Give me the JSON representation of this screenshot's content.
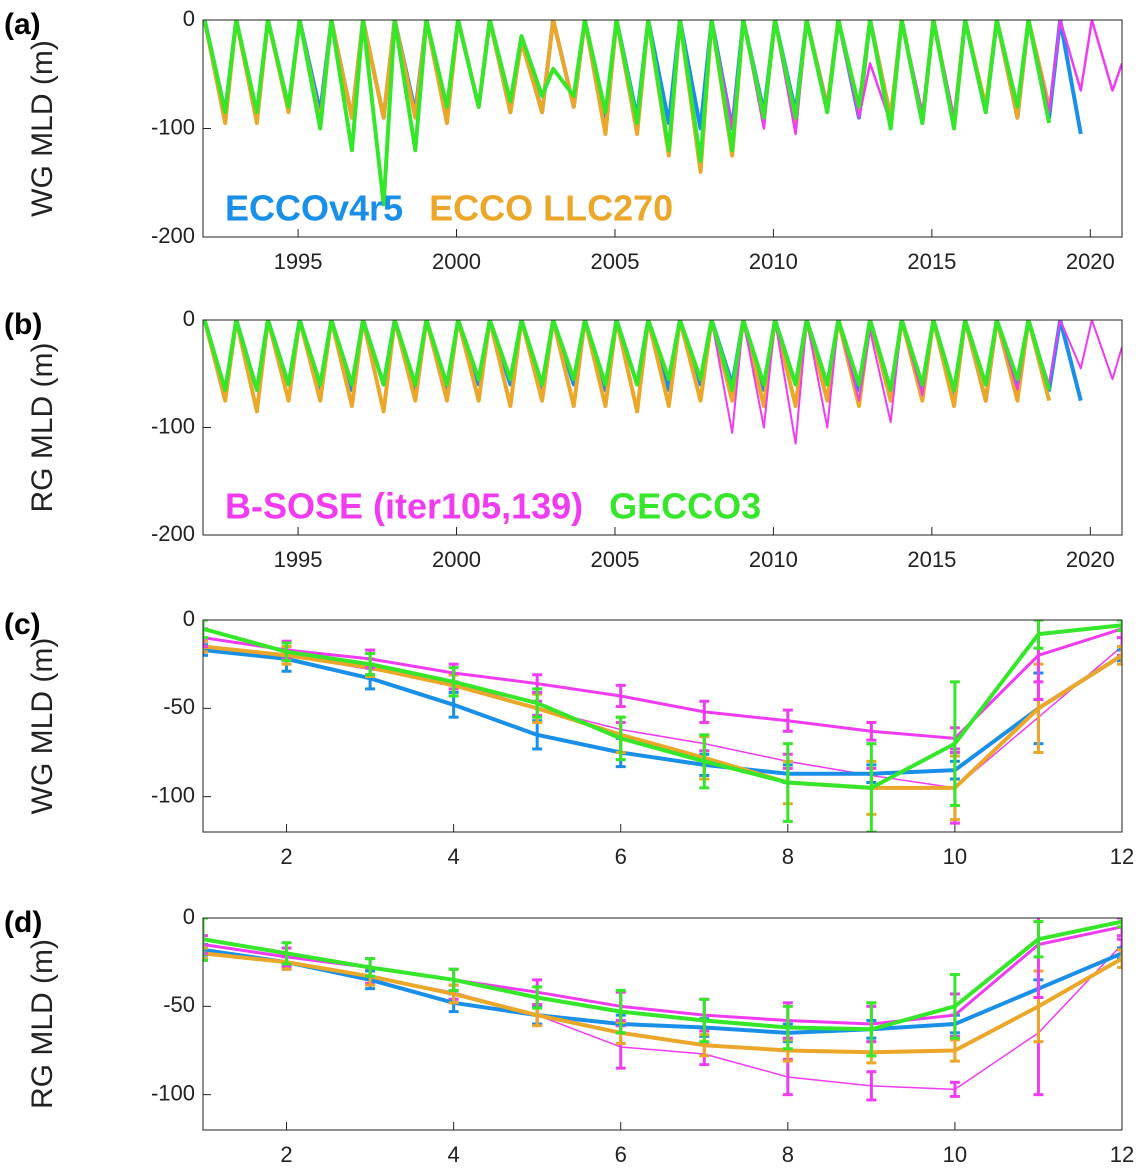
{
  "chart_data": [
    {
      "type": "line",
      "panel_label": "(a)",
      "ylabel": "WG MLD (m)",
      "x": [
        1992.05,
        1992.7,
        1993.05,
        1993.7,
        1994.05,
        1994.7,
        1995.05,
        1995.7,
        1996.05,
        1996.7,
        1997.05,
        1997.7,
        1998.05,
        1998.7,
        1999.05,
        1999.7,
        2000.05,
        2000.7,
        2001.05,
        2001.7,
        2002.05,
        2002.7,
        2003.05,
        2003.7,
        2004.05,
        2004.7,
        2005.05,
        2005.7,
        2006.05,
        2006.7,
        2007.05,
        2007.7,
        2008.05,
        2008.7,
        2009.05,
        2009.7,
        2010.05,
        2010.7,
        2011.05,
        2011.7,
        2012.05,
        2012.7,
        2013.05,
        2013.7,
        2014.05,
        2014.7,
        2015.05,
        2015.7,
        2016.05,
        2016.7,
        2017.05,
        2017.7,
        2018.05,
        2018.7,
        2019.05,
        2019.7,
        2020.05,
        2020.7,
        2021.0
      ],
      "xlim": [
        1992,
        2021
      ],
      "xticks": [
        1995,
        2000,
        2005,
        2010,
        2015,
        2020
      ],
      "ylim": [
        -200,
        0
      ],
      "yticks": [
        -200,
        -100,
        0
      ],
      "series": [
        {
          "name": "ECCOv4r5",
          "color": "#1a8fe8",
          "line_width": 4,
          "values": [
            0,
            -85,
            0,
            -90,
            0,
            -80,
            0,
            -85,
            0,
            -90,
            0,
            -90,
            0,
            -85,
            0,
            -85,
            0,
            -80,
            0,
            -85,
            -15,
            -85,
            0,
            -80,
            0,
            -95,
            0,
            -90,
            0,
            -95,
            0,
            -100,
            0,
            -100,
            0,
            -85,
            0,
            -85,
            0,
            -80,
            0,
            -90,
            0,
            -90,
            0,
            -95,
            0,
            -95,
            0,
            -85,
            0,
            -90,
            0,
            -90,
            0,
            -105,
            null,
            null,
            null
          ]
        },
        {
          "name": "ECCO LLC270",
          "color": "#eaa72a",
          "line_width": 4,
          "values": [
            0,
            -95,
            0,
            -95,
            0,
            -85,
            0,
            -95,
            0,
            -90,
            0,
            -90,
            0,
            -90,
            0,
            -95,
            0,
            -80,
            0,
            -85,
            -20,
            -85,
            0,
            -80,
            0,
            -105,
            0,
            -105,
            0,
            -125,
            0,
            -140,
            0,
            -125,
            0,
            -90,
            0,
            -95,
            0,
            -80,
            0,
            -85,
            0,
            -90,
            0,
            -95,
            0,
            -95,
            0,
            -80,
            0,
            -90,
            0,
            -80,
            null,
            null,
            null,
            null,
            null
          ]
        },
        {
          "color": "#f03cf0",
          "line_width": 2.5,
          "values": [
            null,
            null,
            null,
            null,
            null,
            null,
            null,
            null,
            null,
            null,
            null,
            null,
            null,
            null,
            null,
            null,
            null,
            null,
            null,
            null,
            null,
            null,
            null,
            null,
            null,
            null,
            null,
            null,
            null,
            null,
            null,
            null,
            0,
            -100,
            0,
            -100,
            0,
            -105,
            0,
            -80,
            0,
            -90,
            -40,
            -95,
            0,
            -85,
            0,
            -90,
            0,
            -85,
            0,
            -80,
            0,
            -85,
            0,
            -65,
            0,
            -65,
            -40
          ]
        },
        {
          "color": "#36e62a",
          "line_width": 4,
          "values": [
            0,
            -85,
            0,
            -85,
            0,
            -80,
            0,
            -100,
            0,
            -120,
            0,
            -170,
            0,
            -120,
            0,
            -80,
            0,
            -80,
            0,
            -75,
            -15,
            -70,
            -45,
            -70,
            0,
            -85,
            0,
            -95,
            0,
            -120,
            0,
            -130,
            0,
            -120,
            0,
            -90,
            0,
            -90,
            0,
            -85,
            0,
            -80,
            0,
            -100,
            0,
            -95,
            0,
            -100,
            0,
            -85,
            0,
            -80,
            0,
            -95,
            null,
            null,
            null,
            null,
            null
          ]
        }
      ]
    },
    {
      "type": "line",
      "panel_label": "(b)",
      "ylabel": "RG MLD (m)",
      "x": [
        1992.05,
        1992.7,
        1993.05,
        1993.7,
        1994.05,
        1994.7,
        1995.05,
        1995.7,
        1996.05,
        1996.7,
        1997.05,
        1997.7,
        1998.05,
        1998.7,
        1999.05,
        1999.7,
        2000.05,
        2000.7,
        2001.05,
        2001.7,
        2002.05,
        2002.7,
        2003.05,
        2003.7,
        2004.05,
        2004.7,
        2005.05,
        2005.7,
        2006.05,
        2006.7,
        2007.05,
        2007.7,
        2008.05,
        2008.7,
        2009.05,
        2009.7,
        2010.05,
        2010.7,
        2011.05,
        2011.7,
        2012.05,
        2012.7,
        2013.05,
        2013.7,
        2014.05,
        2014.7,
        2015.05,
        2015.7,
        2016.05,
        2016.7,
        2017.05,
        2017.7,
        2018.05,
        2018.7,
        2019.05,
        2019.7,
        2020.05,
        2020.7,
        2021.0
      ],
      "xlim": [
        1992,
        2021
      ],
      "xticks": [
        1995,
        2000,
        2005,
        2010,
        2015,
        2020
      ],
      "ylim": [
        -200,
        0
      ],
      "yticks": [
        -200,
        -100,
        0
      ],
      "series": [
        {
          "color": "#1a8fe8",
          "line_width": 4,
          "values": [
            0,
            -70,
            0,
            -65,
            0,
            -60,
            0,
            -65,
            0,
            -65,
            0,
            -60,
            0,
            -65,
            0,
            -65,
            0,
            -60,
            0,
            -60,
            0,
            -65,
            0,
            -60,
            0,
            -65,
            0,
            -60,
            0,
            -65,
            0,
            -60,
            0,
            -60,
            0,
            -65,
            0,
            -60,
            0,
            -60,
            0,
            -65,
            0,
            -70,
            0,
            -65,
            0,
            -70,
            0,
            -75,
            0,
            -65,
            0,
            -65,
            0,
            -75,
            null,
            null,
            null
          ]
        },
        {
          "color": "#eaa72a",
          "line_width": 4,
          "values": [
            0,
            -75,
            0,
            -85,
            0,
            -75,
            0,
            -75,
            0,
            -80,
            0,
            -85,
            0,
            -75,
            0,
            -75,
            0,
            -75,
            0,
            -80,
            0,
            -75,
            0,
            -80,
            0,
            -80,
            0,
            -85,
            0,
            -80,
            0,
            -75,
            0,
            -75,
            0,
            -80,
            0,
            -80,
            0,
            -75,
            0,
            -80,
            0,
            -75,
            0,
            -75,
            0,
            -80,
            0,
            -75,
            0,
            -75,
            0,
            -75,
            null,
            null,
            null,
            null,
            null
          ]
        },
        {
          "name": "B-SOSE (iter105,139)",
          "color": "#f03cf0",
          "line_width": 2,
          "values": [
            null,
            null,
            null,
            null,
            null,
            null,
            null,
            null,
            null,
            null,
            null,
            null,
            null,
            null,
            null,
            null,
            null,
            null,
            null,
            null,
            null,
            null,
            null,
            null,
            null,
            null,
            null,
            null,
            null,
            null,
            null,
            null,
            0,
            -105,
            0,
            -100,
            0,
            -115,
            0,
            -100,
            0,
            -75,
            -10,
            -95,
            0,
            -70,
            0,
            -65,
            0,
            -60,
            0,
            -65,
            0,
            -60,
            0,
            -45,
            0,
            -55,
            -25
          ]
        },
        {
          "name": "GECCO3",
          "color": "#36e62a",
          "line_width": 4,
          "values": [
            0,
            -65,
            0,
            -65,
            0,
            -60,
            0,
            -60,
            0,
            -60,
            0,
            -60,
            0,
            -60,
            0,
            -60,
            0,
            -55,
            0,
            -55,
            0,
            -60,
            0,
            -55,
            0,
            -60,
            0,
            -60,
            0,
            -55,
            0,
            -55,
            0,
            -65,
            0,
            -60,
            0,
            -60,
            0,
            -60,
            0,
            -60,
            0,
            -65,
            0,
            -60,
            0,
            -65,
            0,
            -60,
            0,
            -55,
            0,
            -65,
            null,
            null,
            null,
            null,
            null
          ]
        }
      ]
    },
    {
      "type": "errorbar",
      "panel_label": "(c)",
      "ylabel": "WG MLD (m)",
      "x": [
        1,
        2,
        3,
        4,
        5,
        6,
        7,
        8,
        9,
        10,
        11,
        12
      ],
      "xlim": [
        1,
        12
      ],
      "xticks": [
        2,
        4,
        6,
        8,
        10,
        12
      ],
      "ylim": [
        -120,
        0
      ],
      "yticks": [
        -100,
        -50,
        0
      ],
      "series": [
        {
          "color": "#f03cf0",
          "line_width": 1.5,
          "values": [
            -15,
            -20,
            -28,
            -35,
            -50,
            -62,
            -70,
            -80,
            -88,
            -95,
            -55,
            -15
          ],
          "errors": [
            3,
            3,
            3,
            4,
            4,
            4,
            4,
            4,
            4,
            20,
            20,
            5
          ]
        },
        {
          "color": "#1a8fe8",
          "line_width": 4,
          "values": [
            -17,
            -22,
            -33,
            -48,
            -65,
            -75,
            -82,
            -87,
            -87,
            -85,
            -50,
            -20
          ],
          "errors": [
            3,
            7,
            6,
            7,
            8,
            8,
            6,
            5,
            5,
            5,
            20,
            3
          ]
        },
        {
          "color": "#eaa72a",
          "line_width": 4,
          "values": [
            -15,
            -20,
            -27,
            -37,
            -50,
            -65,
            -78,
            -92,
            -95,
            -95,
            -50,
            -20
          ],
          "errors": [
            3,
            5,
            5,
            6,
            8,
            10,
            12,
            12,
            15,
            18,
            25,
            5
          ]
        },
        {
          "color": "#f03cf0",
          "line_width": 3,
          "values": [
            -10,
            -17,
            -22,
            -30,
            -36,
            -43,
            -52,
            -57,
            -63,
            -67,
            -20,
            -5
          ],
          "errors": [
            5,
            5,
            5,
            5,
            5,
            6,
            6,
            6,
            5,
            6,
            25,
            5
          ]
        },
        {
          "color": "#36e62a",
          "line_width": 4,
          "values": [
            -5,
            -18,
            -25,
            -35,
            -47,
            -67,
            -80,
            -92,
            -95,
            -70,
            -8,
            -3
          ],
          "errors": [
            5,
            5,
            6,
            8,
            8,
            12,
            15,
            22,
            25,
            35,
            8,
            3
          ]
        }
      ]
    },
    {
      "type": "errorbar",
      "panel_label": "(d)",
      "ylabel": "RG MLD (m)",
      "x": [
        1,
        2,
        3,
        4,
        5,
        6,
        7,
        8,
        9,
        10,
        11,
        12
      ],
      "xlim": [
        1,
        12
      ],
      "xticks": [
        2,
        4,
        6,
        8,
        10,
        12
      ],
      "ylim": [
        -120,
        0
      ],
      "yticks": [
        -100,
        -50,
        0
      ],
      "series": [
        {
          "color": "#f03cf0",
          "line_width": 1.5,
          "values": [
            -18,
            -25,
            -33,
            -42,
            -55,
            -73,
            -77,
            -90,
            -95,
            -97,
            -65,
            -15
          ],
          "errors": [
            3,
            3,
            4,
            4,
            5,
            12,
            6,
            10,
            8,
            4,
            35,
            3
          ]
        },
        {
          "color": "#1a8fe8",
          "line_width": 4,
          "values": [
            -18,
            -25,
            -35,
            -48,
            -55,
            -60,
            -62,
            -65,
            -63,
            -60,
            -40,
            -20
          ],
          "errors": [
            3,
            4,
            5,
            5,
            5,
            5,
            5,
            5,
            5,
            5,
            5,
            3
          ]
        },
        {
          "color": "#eaa72a",
          "line_width": 4,
          "values": [
            -20,
            -25,
            -33,
            -43,
            -55,
            -65,
            -72,
            -75,
            -76,
            -75,
            -50,
            -23
          ],
          "errors": [
            3,
            4,
            5,
            5,
            6,
            6,
            6,
            6,
            6,
            6,
            20,
            5
          ]
        },
        {
          "color": "#f03cf0",
          "line_width": 3,
          "values": [
            -15,
            -22,
            -28,
            -35,
            -42,
            -50,
            -55,
            -58,
            -60,
            -55,
            -15,
            -5
          ],
          "errors": [
            5,
            5,
            5,
            6,
            7,
            8,
            9,
            10,
            10,
            12,
            30,
            5
          ]
        },
        {
          "color": "#36e62a",
          "line_width": 4,
          "values": [
            -12,
            -20,
            -28,
            -35,
            -45,
            -53,
            -58,
            -62,
            -63,
            -50,
            -12,
            -2
          ],
          "errors": [
            12,
            6,
            5,
            6,
            6,
            12,
            12,
            12,
            15,
            18,
            10,
            3
          ]
        }
      ]
    }
  ]
}
